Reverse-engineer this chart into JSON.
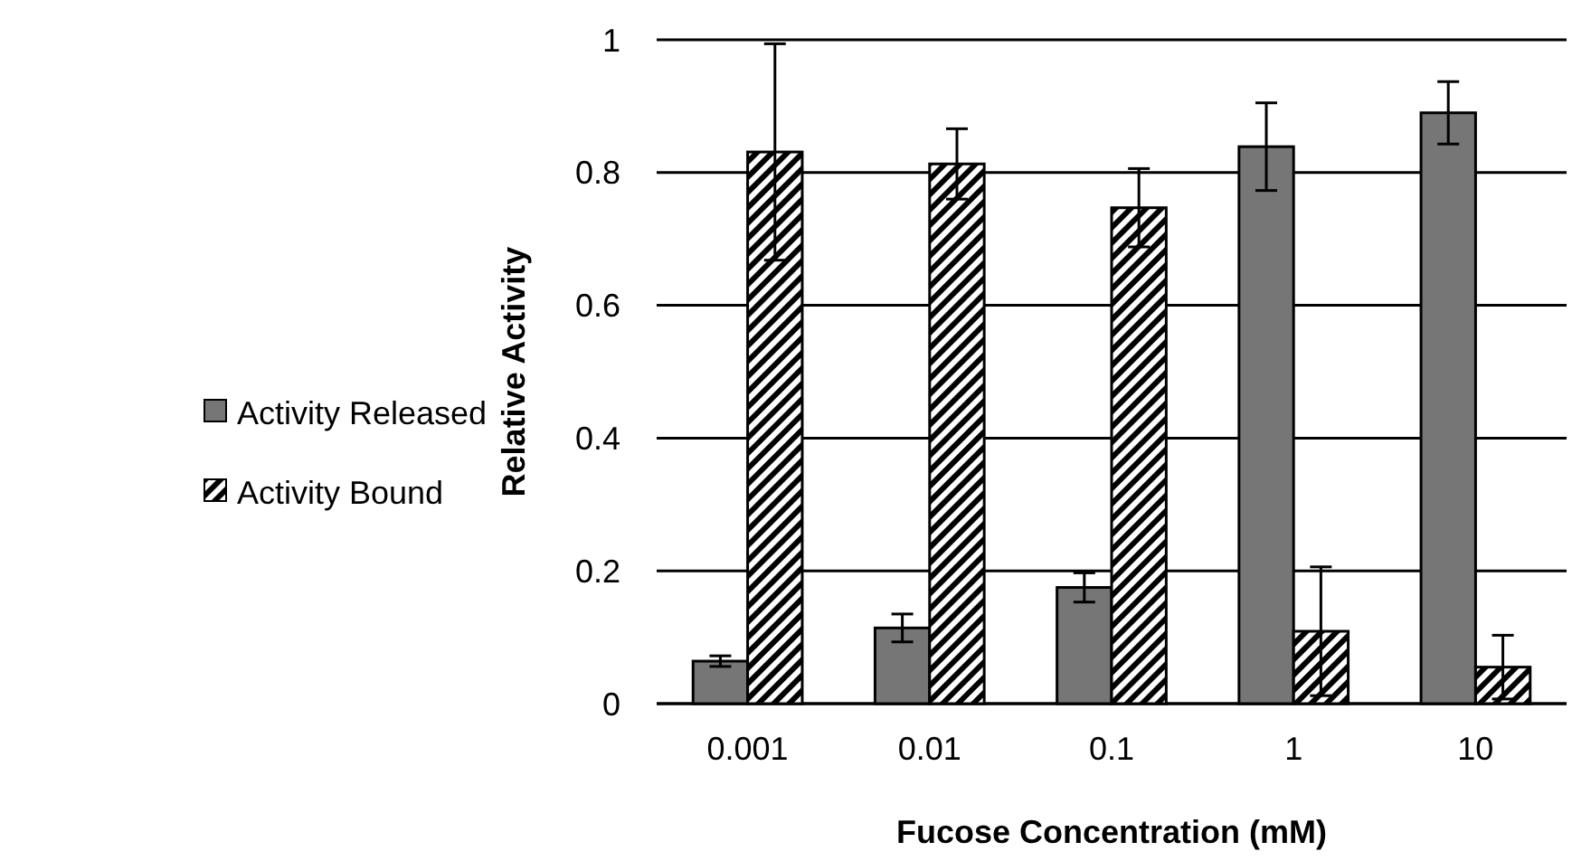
{
  "chart_data": {
    "type": "bar",
    "xlabel": "Fucose Concentration (mM)",
    "ylabel": "Relative Activity",
    "categories": [
      "0.001",
      "0.01",
      "0.1",
      "1",
      "10"
    ],
    "series": [
      {
        "name": "Activity Released",
        "color": "#767676",
        "values": [
          0.064,
          0.114,
          0.175,
          0.839,
          0.89
        ],
        "errors": [
          0.008,
          0.021,
          0.022,
          0.066,
          0.047
        ]
      },
      {
        "name": "Activity Bound",
        "color": "#000000",
        "values": [
          0.831,
          0.813,
          0.747,
          0.109,
          0.055
        ],
        "errors": [
          0.163,
          0.053,
          0.059,
          0.097,
          0.048
        ]
      }
    ],
    "ylim": [
      0,
      1
    ],
    "yticks": [
      0,
      0.2,
      0.4,
      0.6,
      0.8,
      1
    ],
    "grid": "y",
    "legend": "left"
  }
}
